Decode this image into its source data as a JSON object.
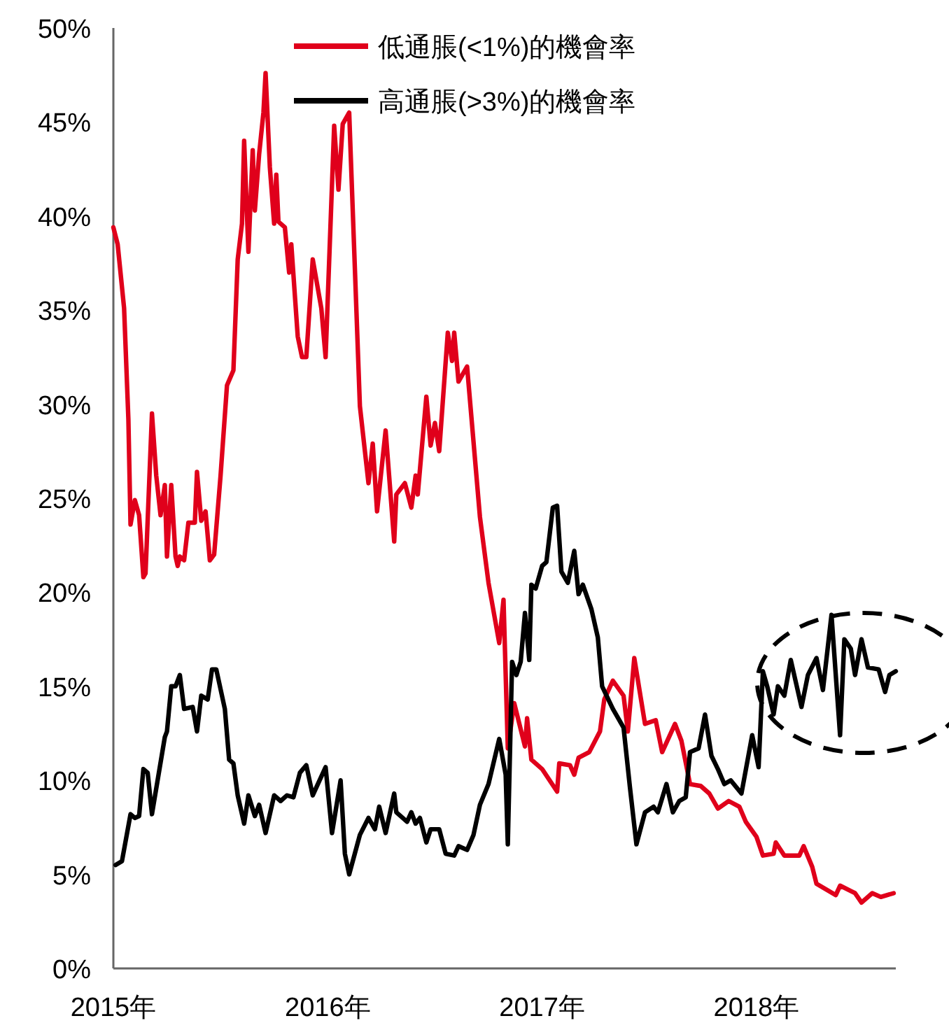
{
  "chart_data": {
    "type": "line",
    "xlim": [
      2015,
      2018.65
    ],
    "ylim": [
      0,
      50
    ],
    "xticks": [
      {
        "value": 2015,
        "label": "2015年"
      },
      {
        "value": 2016,
        "label": "2016年"
      },
      {
        "value": 2017,
        "label": "2017年"
      },
      {
        "value": 2018,
        "label": "2018年"
      }
    ],
    "yticks": [
      {
        "value": 0,
        "label": "0%"
      },
      {
        "value": 5,
        "label": "5%"
      },
      {
        "value": 10,
        "label": "10%"
      },
      {
        "value": 15,
        "label": "15%"
      },
      {
        "value": 20,
        "label": "20%"
      },
      {
        "value": 25,
        "label": "25%"
      },
      {
        "value": 30,
        "label": "30%"
      },
      {
        "value": 35,
        "label": "35%"
      },
      {
        "value": 40,
        "label": "40%"
      },
      {
        "value": 45,
        "label": "45%"
      },
      {
        "value": 50,
        "label": "50%"
      }
    ],
    "legend": "top",
    "series": [
      {
        "name": "低通脹(<1%)的機會率",
        "color": "#e0001b",
        "x": [
          2015.0,
          2015.02,
          2015.05,
          2015.07,
          2015.08,
          2015.1,
          2015.12,
          2015.14,
          2015.15,
          2015.18,
          2015.2,
          2015.22,
          2015.24,
          2015.25,
          2015.27,
          2015.29,
          2015.3,
          2015.31,
          2015.33,
          2015.35,
          2015.38,
          2015.39,
          2015.41,
          2015.43,
          2015.45,
          2015.47,
          2015.5,
          2015.53,
          2015.56,
          2015.58,
          2015.6,
          2015.61,
          2015.63,
          2015.65,
          2015.66,
          2015.68,
          2015.7,
          2015.71,
          2015.73,
          2015.75,
          2015.76,
          2015.77,
          2015.8,
          2015.82,
          2015.83,
          2015.86,
          2015.88,
          2015.9,
          2015.93,
          2015.97,
          2015.99,
          2016.03,
          2016.05,
          2016.07,
          2016.1,
          2016.15,
          2016.19,
          2016.21,
          2016.23,
          2016.27,
          2016.31,
          2016.32,
          2016.36,
          2016.39,
          2016.41,
          2016.42,
          2016.46,
          2016.48,
          2016.5,
          2016.52,
          2016.56,
          2016.58,
          2016.59,
          2016.61,
          2016.65,
          2016.71,
          2016.75,
          2016.8,
          2016.82,
          2016.84,
          2016.87,
          2016.92,
          2016.93,
          2016.95,
          2017.0,
          2017.07,
          2017.08,
          2017.13,
          2017.15,
          2017.17,
          2017.22,
          2017.27,
          2017.29,
          2017.33,
          2017.38,
          2017.4,
          2017.43,
          2017.48,
          2017.53,
          2017.56,
          2017.62,
          2017.65,
          2017.69,
          2017.74,
          2017.78,
          2017.82,
          2017.87,
          2017.92,
          2017.95,
          2018.0,
          2018.03,
          2018.08,
          2018.09,
          2018.13,
          2018.2,
          2018.22,
          2018.26,
          2018.28,
          2018.37,
          2018.39,
          2018.46,
          2018.49,
          2018.54,
          2018.58,
          2018.64
        ],
        "values": [
          39.4,
          38.5,
          35.1,
          29.2,
          23.6,
          24.9,
          24.1,
          20.8,
          21.0,
          29.5,
          26.2,
          24.1,
          25.7,
          21.9,
          25.7,
          21.9,
          21.4,
          21.9,
          21.7,
          23.7,
          23.7,
          26.4,
          23.8,
          24.3,
          21.7,
          22.0,
          26.2,
          31.0,
          31.8,
          37.7,
          39.6,
          44.0,
          38.1,
          43.5,
          40.3,
          43.3,
          45.5,
          47.6,
          42.6,
          39.6,
          42.2,
          39.7,
          39.4,
          37.0,
          38.5,
          33.6,
          32.5,
          32.5,
          37.7,
          35.1,
          32.5,
          44.8,
          41.4,
          44.9,
          45.5,
          29.9,
          25.8,
          27.9,
          24.3,
          28.6,
          22.7,
          25.2,
          25.8,
          24.5,
          26.2,
          25.2,
          30.4,
          27.8,
          29.0,
          27.5,
          33.8,
          32.3,
          33.8,
          31.2,
          32.0,
          24.0,
          20.5,
          17.3,
          19.6,
          11.7,
          14.1,
          11.8,
          13.3,
          11.1,
          10.6,
          9.4,
          10.9,
          10.8,
          10.3,
          11.2,
          11.5,
          12.6,
          14.3,
          15.3,
          14.5,
          12.6,
          16.5,
          13.0,
          13.2,
          11.5,
          13.0,
          12.1,
          9.8,
          9.7,
          9.3,
          8.5,
          8.9,
          8.6,
          7.8,
          7.0,
          6.0,
          6.1,
          6.7,
          6.0,
          6.0,
          6.5,
          5.4,
          4.5,
          3.9,
          4.4,
          4.0,
          3.5,
          4.0,
          3.8,
          4.0
        ]
      },
      {
        "name": "高通脹(>3%)的機會率",
        "color": "#000000",
        "x": [
          2015.01,
          2015.04,
          2015.08,
          2015.1,
          2015.12,
          2015.14,
          2015.16,
          2015.18,
          2015.24,
          2015.25,
          2015.27,
          2015.29,
          2015.31,
          2015.33,
          2015.37,
          2015.39,
          2015.41,
          2015.44,
          2015.46,
          2015.48,
          2015.52,
          2015.54,
          2015.56,
          2015.58,
          2015.61,
          2015.63,
          2015.66,
          2015.68,
          2015.71,
          2015.75,
          2015.78,
          2015.81,
          2015.84,
          2015.87,
          2015.9,
          2015.93,
          2015.99,
          2016.02,
          2016.06,
          2016.08,
          2016.1,
          2016.15,
          2016.19,
          2016.22,
          2016.24,
          2016.27,
          2016.31,
          2016.32,
          2016.37,
          2016.39,
          2016.41,
          2016.43,
          2016.46,
          2016.48,
          2016.52,
          2016.55,
          2016.59,
          2016.61,
          2016.65,
          2016.68,
          2016.71,
          2016.75,
          2016.8,
          2016.83,
          2016.84,
          2016.86,
          2016.88,
          2016.9,
          2016.92,
          2016.94,
          2016.95,
          2016.97,
          2017.0,
          2017.02,
          2017.05,
          2017.07,
          2017.09,
          2017.12,
          2017.15,
          2017.17,
          2017.19,
          2017.23,
          2017.26,
          2017.28,
          2017.33,
          2017.38,
          2017.41,
          2017.44,
          2017.48,
          2017.52,
          2017.54,
          2017.58,
          2017.61,
          2017.64,
          2017.67,
          2017.69,
          2017.73,
          2017.76,
          2017.79,
          2017.82,
          2017.85,
          2017.88,
          2017.93,
          2017.98,
          2018.01,
          2018.03,
          2018.05,
          2018.08,
          2018.1,
          2018.13,
          2018.16,
          2018.21,
          2018.24,
          2018.28,
          2018.31,
          2018.35,
          2018.39,
          2018.41,
          2018.44,
          2018.46,
          2018.49,
          2018.52,
          2018.57,
          2018.6,
          2018.62,
          2018.65
        ],
        "values": [
          5.5,
          5.7,
          8.2,
          8.0,
          8.1,
          10.6,
          10.4,
          8.2,
          12.3,
          12.6,
          15.0,
          15.0,
          15.6,
          13.8,
          13.9,
          12.6,
          14.5,
          14.3,
          15.9,
          15.9,
          13.8,
          11.1,
          10.9,
          9.2,
          7.7,
          9.2,
          8.1,
          8.7,
          7.2,
          9.2,
          8.9,
          9.2,
          9.1,
          10.4,
          10.8,
          9.2,
          10.7,
          7.2,
          10.0,
          6.1,
          5.0,
          7.1,
          8.0,
          7.4,
          8.6,
          7.2,
          9.3,
          8.3,
          7.8,
          8.3,
          7.7,
          8.0,
          6.7,
          7.4,
          7.4,
          6.1,
          6.0,
          6.5,
          6.3,
          7.1,
          8.7,
          9.8,
          12.2,
          10.3,
          6.6,
          16.3,
          15.6,
          16.3,
          18.9,
          16.4,
          20.4,
          20.2,
          21.4,
          21.6,
          24.5,
          24.6,
          21.1,
          20.5,
          22.2,
          19.9,
          20.4,
          19.1,
          17.6,
          15.0,
          13.8,
          12.8,
          9.6,
          6.6,
          8.3,
          8.6,
          8.3,
          9.8,
          8.3,
          8.9,
          9.1,
          11.5,
          11.7,
          13.5,
          11.3,
          10.6,
          9.8,
          10.0,
          9.3,
          12.4,
          10.7,
          15.8,
          15.0,
          13.5,
          15.0,
          14.5,
          16.4,
          13.9,
          15.6,
          16.5,
          14.8,
          18.8,
          12.4,
          17.5,
          17.0,
          15.6,
          17.5,
          16.0,
          15.9,
          14.7,
          15.6,
          15.8
        ]
      }
    ]
  }
}
